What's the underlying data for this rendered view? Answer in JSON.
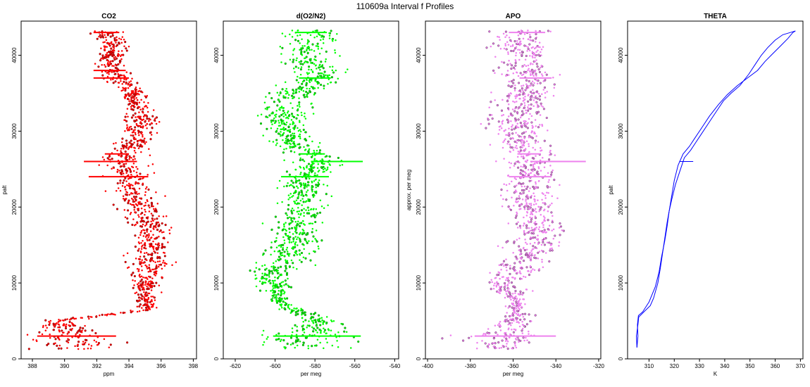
{
  "figure_title": "110609a   Interval f Profiles",
  "chart_data": [
    {
      "type": "scatter",
      "title": "CO2",
      "xlabel": "ppm",
      "ylabel": "palt",
      "xlim": [
        387.3,
        398.2
      ],
      "ylim": [
        0,
        44500
      ],
      "xticks": [
        388,
        390,
        392,
        394,
        396,
        398
      ],
      "yticks": [
        0,
        10000,
        20000,
        30000,
        40000
      ],
      "color": "#ff0000",
      "profile": [
        {
          "alt": 1500,
          "center": 390.8,
          "spread": 1.6
        },
        {
          "alt": 3000,
          "center": 390.8,
          "spread": 1.4
        },
        {
          "alt": 5000,
          "center": 389.5,
          "spread": 0.5
        },
        {
          "alt": 6500,
          "center": 395.2,
          "spread": 0.3
        },
        {
          "alt": 9000,
          "center": 395.0,
          "spread": 0.5
        },
        {
          "alt": 12000,
          "center": 395.3,
          "spread": 0.9
        },
        {
          "alt": 15000,
          "center": 395.5,
          "spread": 0.8
        },
        {
          "alt": 18000,
          "center": 395.2,
          "spread": 0.8
        },
        {
          "alt": 21000,
          "center": 394.4,
          "spread": 0.8
        },
        {
          "alt": 24000,
          "center": 394.0,
          "spread": 0.8
        },
        {
          "alt": 26500,
          "center": 393.5,
          "spread": 0.8
        },
        {
          "alt": 29000,
          "center": 394.6,
          "spread": 0.7
        },
        {
          "alt": 32000,
          "center": 394.7,
          "spread": 0.6
        },
        {
          "alt": 35000,
          "center": 394.2,
          "spread": 0.5
        },
        {
          "alt": 38000,
          "center": 392.8,
          "spread": 0.6
        },
        {
          "alt": 40500,
          "center": 393.0,
          "spread": 0.5
        },
        {
          "alt": 43000,
          "center": 392.7,
          "spread": 0.6
        }
      ],
      "level_legs": [
        {
          "alt": 3000,
          "x1": 388.3,
          "x2": 393.2
        },
        {
          "alt": 24000,
          "x1": 391.5,
          "x2": 395.2
        },
        {
          "alt": 26000,
          "x1": 391.2,
          "x2": 394.5
        },
        {
          "alt": 27000,
          "x1": 392.5,
          "x2": 394.0
        },
        {
          "alt": 37000,
          "x1": 391.8,
          "x2": 394.0
        },
        {
          "alt": 38000,
          "x1": 391.8,
          "x2": 393.8
        },
        {
          "alt": 43000,
          "x1": 391.8,
          "x2": 393.4
        }
      ]
    },
    {
      "type": "scatter",
      "title": "d(O2/N2)",
      "xlabel": "per meg",
      "ylabel": "",
      "xlim": [
        -626,
        -538
      ],
      "ylim": [
        0,
        44500
      ],
      "xticks": [
        -620,
        -600,
        -580,
        -560,
        -540
      ],
      "yticks": [
        0,
        10000,
        20000,
        30000,
        40000
      ],
      "color": "#00ff00",
      "profile": [
        {
          "alt": 1500,
          "center": -583,
          "spread": 14
        },
        {
          "alt": 3000,
          "center": -585,
          "spread": 15
        },
        {
          "alt": 5000,
          "center": -578,
          "spread": 6
        },
        {
          "alt": 7500,
          "center": -597,
          "spread": 4
        },
        {
          "alt": 10000,
          "center": -600,
          "spread": 6
        },
        {
          "alt": 11000,
          "center": -604,
          "spread": 6
        },
        {
          "alt": 13000,
          "center": -596,
          "spread": 10
        },
        {
          "alt": 16000,
          "center": -590,
          "spread": 8
        },
        {
          "alt": 19000,
          "center": -588,
          "spread": 8
        },
        {
          "alt": 22000,
          "center": -586,
          "spread": 7
        },
        {
          "alt": 24000,
          "center": -585,
          "spread": 7
        },
        {
          "alt": 26000,
          "center": -578,
          "spread": 8
        },
        {
          "alt": 28000,
          "center": -590,
          "spread": 8
        },
        {
          "alt": 31000,
          "center": -595,
          "spread": 9
        },
        {
          "alt": 34000,
          "center": -595,
          "spread": 9
        },
        {
          "alt": 37000,
          "center": -578,
          "spread": 8
        },
        {
          "alt": 40000,
          "center": -583,
          "spread": 8
        },
        {
          "alt": 43000,
          "center": -581,
          "spread": 9
        }
      ],
      "level_legs": [
        {
          "alt": 3000,
          "x1": -601,
          "x2": -557
        },
        {
          "alt": 24000,
          "x1": -597,
          "x2": -573
        },
        {
          "alt": 26000,
          "x1": -582,
          "x2": -556
        },
        {
          "alt": 27000,
          "x1": -588,
          "x2": -575
        },
        {
          "alt": 37000,
          "x1": -588,
          "x2": -572
        },
        {
          "alt": 43000,
          "x1": -590,
          "x2": -574
        }
      ]
    },
    {
      "type": "scatter",
      "title": "APO",
      "xlabel": "per meg",
      "ylabel": "approx. per meg",
      "xlim": [
        -401,
        -319
      ],
      "ylim": [
        0,
        44500
      ],
      "xticks": [
        -400,
        -380,
        -360,
        -340,
        -320
      ],
      "yticks": [
        0,
        10000,
        20000,
        30000,
        40000
      ],
      "color": "#ee82ee",
      "profile": [
        {
          "alt": 1500,
          "center": -366,
          "spread": 8
        },
        {
          "alt": 3000,
          "center": -365,
          "spread": 12
        },
        {
          "alt": 4500,
          "center": -360,
          "spread": 5
        },
        {
          "alt": 7500,
          "center": -358,
          "spread": 3
        },
        {
          "alt": 10000,
          "center": -365,
          "spread": 6
        },
        {
          "alt": 13000,
          "center": -355,
          "spread": 9
        },
        {
          "alt": 16000,
          "center": -350,
          "spread": 8
        },
        {
          "alt": 19000,
          "center": -352,
          "spread": 8
        },
        {
          "alt": 22000,
          "center": -353,
          "spread": 8
        },
        {
          "alt": 25000,
          "center": -352,
          "spread": 7
        },
        {
          "alt": 28000,
          "center": -355,
          "spread": 7
        },
        {
          "alt": 31000,
          "center": -358,
          "spread": 8
        },
        {
          "alt": 34000,
          "center": -356,
          "spread": 8
        },
        {
          "alt": 37000,
          "center": -352,
          "spread": 8
        },
        {
          "alt": 40000,
          "center": -356,
          "spread": 8
        },
        {
          "alt": 43000,
          "center": -357,
          "spread": 9
        }
      ],
      "level_legs": [
        {
          "alt": 3000,
          "x1": -378,
          "x2": -340
        },
        {
          "alt": 24000,
          "x1": -362,
          "x2": -342
        },
        {
          "alt": 26000,
          "x1": -352,
          "x2": -326
        },
        {
          "alt": 27000,
          "x1": -358,
          "x2": -347
        },
        {
          "alt": 37000,
          "x1": -357,
          "x2": -342
        },
        {
          "alt": 43000,
          "x1": -362,
          "x2": -345
        }
      ]
    },
    {
      "type": "line",
      "title": "THETA",
      "xlabel": "K",
      "ylabel": "palt",
      "xlim": [
        301.5,
        371
      ],
      "ylim": [
        0,
        44500
      ],
      "xticks": [
        310,
        320,
        330,
        340,
        350,
        360,
        370
      ],
      "yticks": [
        0,
        10000,
        20000,
        30000,
        40000
      ],
      "color": "#0000ff",
      "series": [
        {
          "name": "ascent",
          "theta": [
            305.2,
            305.0,
            305.6,
            305.9,
            308.0,
            310.5,
            311.8,
            313.5,
            314.5,
            315.4,
            316.3,
            317.2,
            318.0,
            319.0,
            320.5,
            322.5,
            324.0,
            326.5,
            328.5,
            330.5,
            333.5,
            336.5,
            339.5,
            342.5,
            346.0,
            349.5,
            352.5,
            354.5,
            357.0,
            360.0,
            363.0,
            366.0,
            368.0
          ],
          "palt": [
            1500,
            3000,
            4500,
            5500,
            6200,
            7000,
            8000,
            10000,
            12000,
            14000,
            16000,
            18000,
            19500,
            21000,
            23000,
            25000,
            26500,
            27500,
            28500,
            29500,
            31000,
            32500,
            34000,
            35000,
            36000,
            37500,
            39000,
            40000,
            41000,
            42000,
            42700,
            43000,
            43200
          ]
        },
        {
          "name": "descent",
          "theta": [
            368.0,
            367.0,
            365.0,
            362.0,
            359.0,
            356.0,
            353.0,
            349.0,
            345.0,
            341.0,
            337.5,
            334.0,
            331.0,
            328.0,
            326.0,
            323.5,
            321.5,
            320.0,
            319.0,
            318.0,
            317.2,
            316.2,
            315.0,
            314.0,
            312.5,
            310.0,
            307.5,
            305.8,
            305.4,
            305.6,
            305.2
          ],
          "palt": [
            43200,
            43000,
            42200,
            41200,
            40200,
            39200,
            38000,
            37000,
            36000,
            34800,
            33500,
            32000,
            30500,
            29000,
            28000,
            27000,
            25500,
            23500,
            21500,
            19500,
            17500,
            15500,
            13500,
            11500,
            9500,
            7500,
            6200,
            5700,
            4500,
            3000,
            1500
          ]
        }
      ],
      "level_legs": [
        {
          "alt": 26000,
          "x1": 322.0,
          "x2": 327.5
        }
      ]
    }
  ]
}
